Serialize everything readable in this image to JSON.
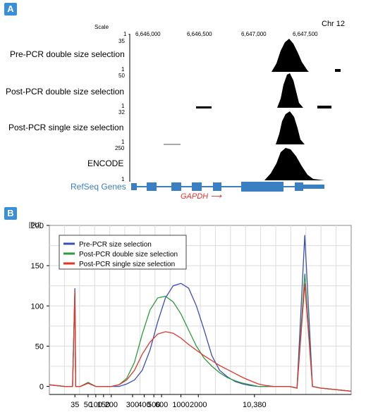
{
  "panel_a": {
    "badge": "A",
    "scale_label": "Scale",
    "chromosome": "Chr 12",
    "tracks": [
      {
        "label": "Pre-PCR double size selection",
        "max": "35",
        "min": "1"
      },
      {
        "label": "Post-PCR double size selection",
        "max": "50",
        "min": "1"
      },
      {
        "label": "Post-PCR single size selection",
        "max": "32",
        "min": "1"
      },
      {
        "label": "ENCODE",
        "max": "250",
        "min": "1"
      }
    ],
    "gene_track_label": "RefSeq Genes",
    "gene_name": "GAPDH",
    "gene_arrow": "⟶",
    "colors": {
      "gene": "#3a7fc1",
      "gene_name": "#e8332e",
      "signal": "#000000"
    }
  },
  "chart_data": {
    "type": "line",
    "badge": "B",
    "ylabel": "[FU]",
    "ylim": [
      -10,
      200
    ],
    "yticks": [
      "0",
      "50",
      "100",
      "150",
      "200"
    ],
    "xtick_labels": [
      "35",
      "50",
      "100",
      "150",
      "200",
      "300",
      "400",
      "500",
      "600",
      "1000",
      "2000",
      "10,380"
    ],
    "grid": true,
    "legend_position": "top-left",
    "series": [
      {
        "name": "Pre-PCR size selection",
        "color": "#3a4fb5"
      },
      {
        "name": "Post-PCR double size selection",
        "color": "#2e9a3c"
      },
      {
        "name": "Post-PCR single size selection",
        "color": "#e2342b"
      }
    ],
    "x": [
      0,
      40,
      60,
      66,
      68,
      70,
      72,
      80,
      100,
      120,
      140,
      160,
      180,
      200,
      220,
      240,
      260,
      280,
      300,
      320,
      340,
      360,
      380,
      400,
      420,
      440,
      460,
      480,
      500,
      520,
      540,
      560,
      580,
      600,
      620,
      640,
      660,
      680,
      700,
      720,
      740,
      760,
      780
    ],
    "values": {
      "Pre-PCR size selection": [
        2,
        0,
        0,
        122,
        0,
        0,
        0,
        0,
        4,
        0,
        0,
        0,
        0,
        3,
        8,
        20,
        45,
        80,
        110,
        125,
        128,
        122,
        100,
        70,
        38,
        20,
        12,
        6,
        3,
        1,
        0,
        0,
        0,
        0,
        0,
        -2,
        188,
        0,
        -2,
        -3,
        -4,
        -5,
        -6
      ],
      "Post-PCR double size selection": [
        2,
        0,
        0,
        118,
        0,
        0,
        0,
        0,
        5,
        0,
        0,
        0,
        2,
        10,
        30,
        65,
        95,
        110,
        112,
        105,
        90,
        70,
        50,
        35,
        25,
        17,
        11,
        7,
        4,
        2,
        0,
        0,
        0,
        0,
        0,
        -2,
        140,
        0,
        -2,
        -3,
        -4,
        -5,
        -6
      ],
      "Post-PCR single size selection": [
        2,
        0,
        0,
        118,
        0,
        0,
        0,
        0,
        4,
        0,
        0,
        0,
        2,
        8,
        20,
        40,
        55,
        65,
        68,
        66,
        60,
        52,
        45,
        38,
        32,
        26,
        21,
        16,
        11,
        7,
        3,
        1,
        0,
        0,
        0,
        -2,
        128,
        0,
        -2,
        -3,
        -4,
        -5,
        -6
      ]
    }
  },
  "genome_tick_labels": [
    "6,646,000",
    "6,646,500",
    "6,647,000",
    "6,647,500"
  ]
}
